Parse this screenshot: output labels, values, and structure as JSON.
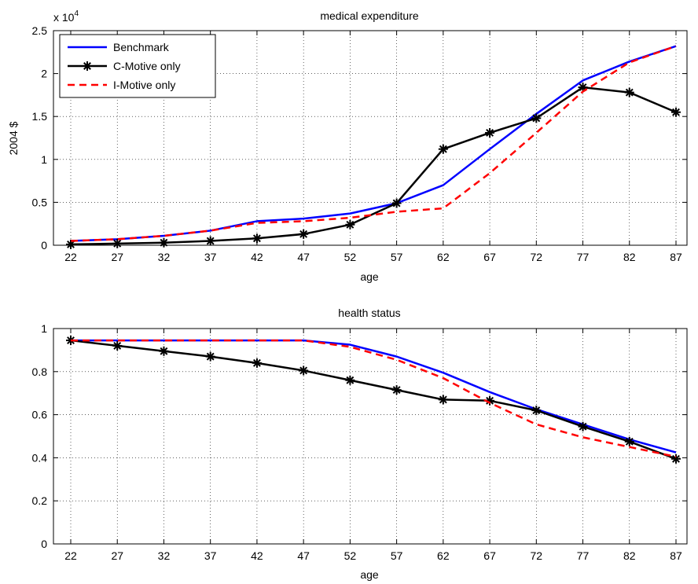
{
  "chart_data": [
    {
      "type": "line",
      "title": "medical expenditure",
      "xlabel": "age",
      "ylabel": "2004 $",
      "y_exponent_label": "x 10",
      "y_exponent_power": "4",
      "categories": [
        "22",
        "27",
        "32",
        "37",
        "42",
        "47",
        "52",
        "57",
        "62",
        "67",
        "72",
        "77",
        "82",
        "87"
      ],
      "ylim": [
        0,
        2.5
      ],
      "yticks": [
        "0",
        "0.5",
        "1",
        "1.5",
        "2",
        "2.5"
      ],
      "grid": true,
      "legend_position": "top-left",
      "series": [
        {
          "name": "Benchmark",
          "color": "#0000ff",
          "style": "solid",
          "marker": "none",
          "values": [
            0.05,
            0.07,
            0.11,
            0.17,
            0.28,
            0.31,
            0.37,
            0.49,
            0.7,
            1.12,
            1.53,
            1.92,
            2.14,
            2.32
          ]
        },
        {
          "name": "C-Motive only",
          "color": "#000000",
          "style": "solid",
          "marker": "asterisk",
          "values": [
            0.01,
            0.02,
            0.03,
            0.05,
            0.08,
            0.13,
            0.24,
            0.49,
            1.12,
            1.31,
            1.48,
            1.84,
            1.78,
            1.55
          ]
        },
        {
          "name": "I-Motive only",
          "color": "#ff0000",
          "style": "dashed",
          "marker": "none",
          "values": [
            0.05,
            0.07,
            0.11,
            0.17,
            0.26,
            0.28,
            0.32,
            0.39,
            0.43,
            0.84,
            1.31,
            1.79,
            2.13,
            2.32
          ]
        }
      ]
    },
    {
      "type": "line",
      "title": "health status",
      "xlabel": "age",
      "ylabel": "",
      "categories": [
        "22",
        "27",
        "32",
        "37",
        "42",
        "47",
        "52",
        "57",
        "62",
        "67",
        "72",
        "77",
        "82",
        "87"
      ],
      "ylim": [
        0,
        1
      ],
      "yticks": [
        "0",
        "0.2",
        "0.4",
        "0.6",
        "0.8",
        "1"
      ],
      "grid": true,
      "series": [
        {
          "name": "Benchmark",
          "color": "#0000ff",
          "style": "solid",
          "marker": "none",
          "values": [
            0.945,
            0.945,
            0.945,
            0.945,
            0.945,
            0.945,
            0.925,
            0.87,
            0.795,
            0.705,
            0.625,
            0.555,
            0.485,
            0.425
          ]
        },
        {
          "name": "C-Motive only",
          "color": "#000000",
          "style": "solid",
          "marker": "asterisk",
          "values": [
            0.945,
            0.92,
            0.895,
            0.87,
            0.84,
            0.805,
            0.76,
            0.715,
            0.67,
            0.665,
            0.62,
            0.545,
            0.475,
            0.395
          ]
        },
        {
          "name": "I-Motive only",
          "color": "#ff0000",
          "style": "dashed",
          "marker": "none",
          "values": [
            0.945,
            0.945,
            0.945,
            0.945,
            0.945,
            0.945,
            0.915,
            0.855,
            0.77,
            0.655,
            0.555,
            0.495,
            0.45,
            0.405
          ]
        }
      ]
    }
  ]
}
